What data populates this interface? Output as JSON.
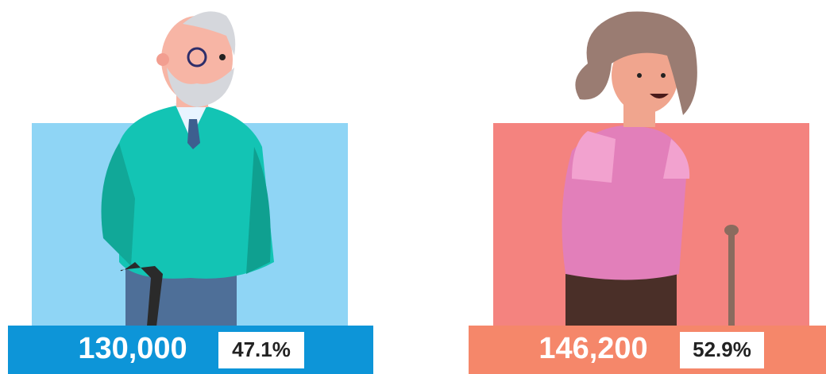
{
  "panels": [
    {
      "value": "130,000",
      "share": "47.1%"
    },
    {
      "value": "146,200",
      "share": "52.9%"
    }
  ]
}
